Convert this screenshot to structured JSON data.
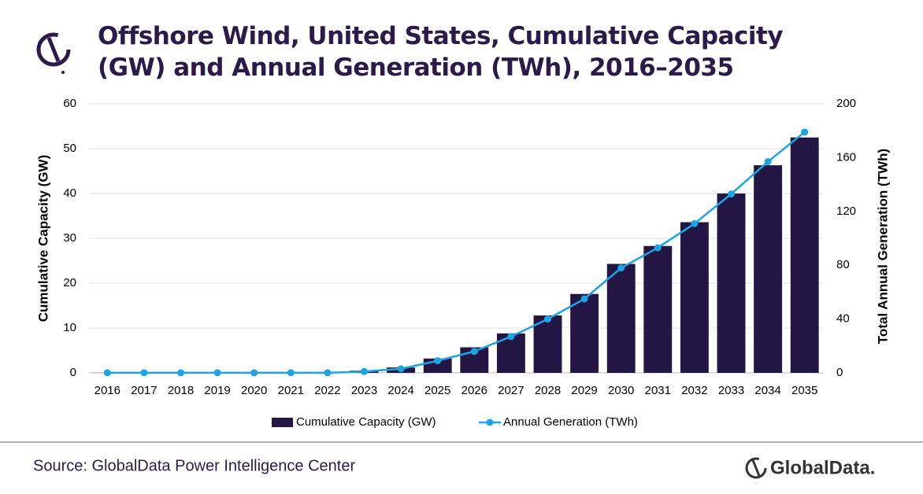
{
  "chart_data": {
    "type": "bar-line",
    "title": "Offshore Wind, United States, Cumulative Capacity (GW) and Annual Generation (TWh), 2016–2035",
    "categories": [
      "2016",
      "2017",
      "2018",
      "2019",
      "2020",
      "2021",
      "2022",
      "2023",
      "2024",
      "2025",
      "2026",
      "2027",
      "2028",
      "2029",
      "2030",
      "2031",
      "2032",
      "2033",
      "2034",
      "2035"
    ],
    "series": [
      {
        "name": "Cumulative Capacity (GW)",
        "color": "#231544",
        "type": "bar",
        "values": [
          0.03,
          0.03,
          0.03,
          0.03,
          0.03,
          0.03,
          0.03,
          0.5,
          1.2,
          3.2,
          5.7,
          8.8,
          12.8,
          17.6,
          24.3,
          28.3,
          33.6,
          40.0,
          46.3,
          52.5
        ]
      },
      {
        "name": "Annual Generation (TWh)",
        "color": "#1ca4e4",
        "type": "line",
        "axis": "y2",
        "values": [
          0.1,
          0.1,
          0.1,
          0.1,
          0.1,
          0.1,
          0.1,
          1,
          3,
          9,
          16,
          27,
          40,
          55,
          78,
          93,
          111,
          133,
          157,
          179
        ]
      }
    ],
    "ylabel": "Cumulative Capacity (GW)",
    "y2label": "Total Annual Generation (TWh)",
    "ylim": [
      0,
      60
    ],
    "yticks": [
      0,
      10,
      20,
      30,
      40,
      50,
      60
    ],
    "y2lim": [
      0,
      200
    ],
    "y2ticks": [
      0,
      40,
      80,
      120,
      160,
      200
    ],
    "grid": true,
    "legend": "bottom"
  },
  "source": "Source: GlobalData Power Intelligence Center",
  "brand": "GlobalData."
}
